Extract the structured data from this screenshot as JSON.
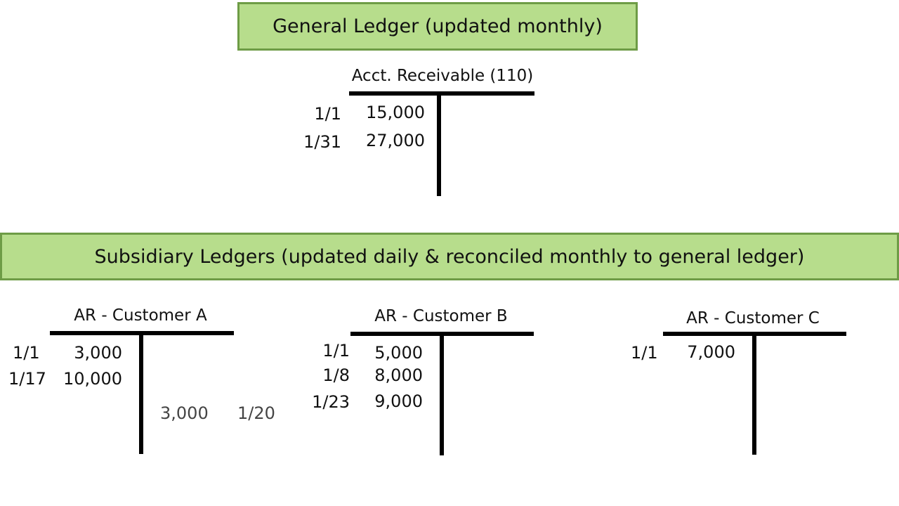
{
  "general_ledger": {
    "banner": "General Ledger (updated monthly)",
    "account": {
      "title": "Acct. Receivable (110)",
      "debits": [
        {
          "date": "1/1",
          "amount": "15,000"
        },
        {
          "date": "1/31",
          "amount": "27,000"
        }
      ]
    }
  },
  "subsidiary": {
    "banner": "Subsidiary Ledgers (updated daily & reconciled monthly to general ledger)",
    "accounts": [
      {
        "title": "AR - Customer A",
        "debits": [
          {
            "date": "1/1",
            "amount": "3,000"
          },
          {
            "date": "1/17",
            "amount": "10,000"
          }
        ],
        "credits": [
          {
            "amount": "3,000",
            "date": "1/20"
          }
        ]
      },
      {
        "title": "AR - Customer B",
        "debits": [
          {
            "date": "1/1",
            "amount": "5,000"
          },
          {
            "date": "1/8",
            "amount": "8,000"
          },
          {
            "date": "1/23",
            "amount": "9,000"
          }
        ]
      },
      {
        "title": "AR - Customer C",
        "debits": [
          {
            "date": "1/1",
            "amount": "7,000"
          }
        ]
      }
    ]
  }
}
